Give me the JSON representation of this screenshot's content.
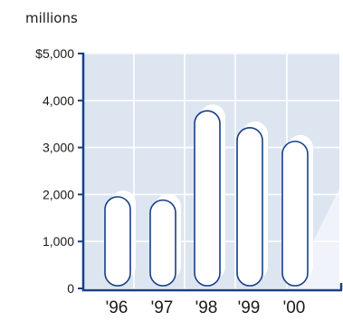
{
  "chart_data": {
    "type": "bar",
    "unit_label": "millions",
    "categories": [
      "'96",
      "'97",
      "'98",
      "'99",
      "'00"
    ],
    "values": [
      1950,
      1880,
      3780,
      3420,
      3130
    ],
    "ylim": [
      0,
      5000
    ],
    "yticks": [
      0,
      1000,
      2000,
      3000,
      4000,
      5000
    ],
    "ytick_labels": [
      "0",
      "1,000",
      "2,000",
      "3,000",
      "4,000",
      "$5,000"
    ],
    "grid": true,
    "legend": "none",
    "colors": {
      "plot_background": "#dde5f1",
      "gridline": "#ffffff",
      "bar_fill": "#ffffff",
      "bar_stroke": "#173f86",
      "axis": "#173f86",
      "bar_shadow": "#ffffff"
    }
  }
}
